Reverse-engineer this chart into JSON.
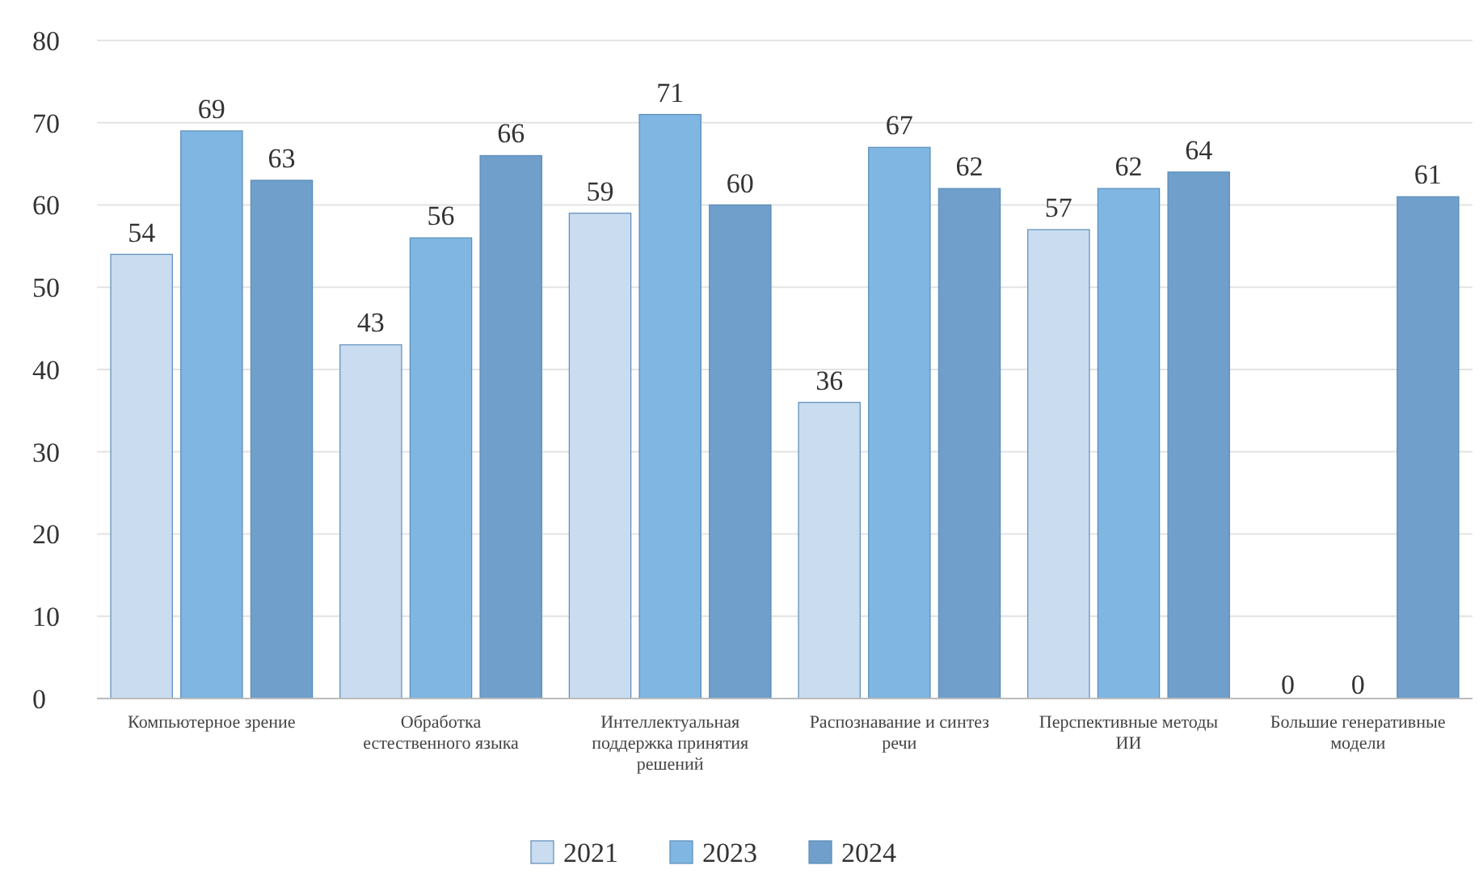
{
  "chart_data": {
    "type": "bar",
    "categories": [
      "Компьютерное зрение",
      "Обработка естественного языка",
      "Интеллектуальная поддержка принятия решений",
      "Распознавание и синтез речи",
      "Перспективные методы ИИ",
      "Большие генеративные модели"
    ],
    "series": [
      {
        "name": "2021",
        "color": "#c9dcf0",
        "values": [
          54,
          43,
          59,
          36,
          57,
          0
        ]
      },
      {
        "name": "2023",
        "color": "#7fb6e2",
        "values": [
          69,
          56,
          71,
          67,
          62,
          0
        ]
      },
      {
        "name": "2024",
        "color": "#6f9fca",
        "values": [
          63,
          66,
          60,
          62,
          64,
          61
        ]
      }
    ],
    "ylim": [
      0,
      80
    ],
    "yticks": [
      0,
      10,
      20,
      30,
      40,
      50,
      60,
      70,
      80
    ],
    "grid": "y",
    "data_labels": true,
    "legend": "bottom"
  }
}
